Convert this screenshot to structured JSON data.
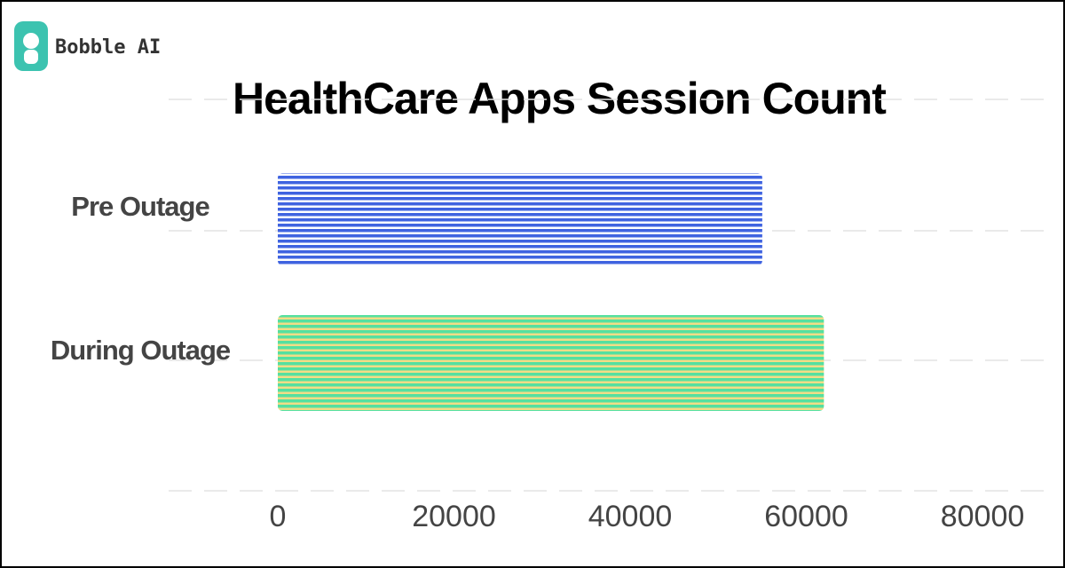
{
  "brand": "Bobble AI",
  "chart_data": {
    "type": "hbar",
    "title": "HealthCare Apps Session Count",
    "categories": [
      "Pre  Outage",
      "During Outage"
    ],
    "values": [
      55000,
      62000
    ],
    "colors": [
      "#3f63e0",
      "#55e0a0"
    ],
    "stripe_colors": [
      "#ffffff",
      "#f2dc86"
    ],
    "xlim": [
      0,
      80000
    ],
    "xticks": [
      0,
      20000,
      40000,
      60000,
      80000
    ],
    "grid": true
  }
}
